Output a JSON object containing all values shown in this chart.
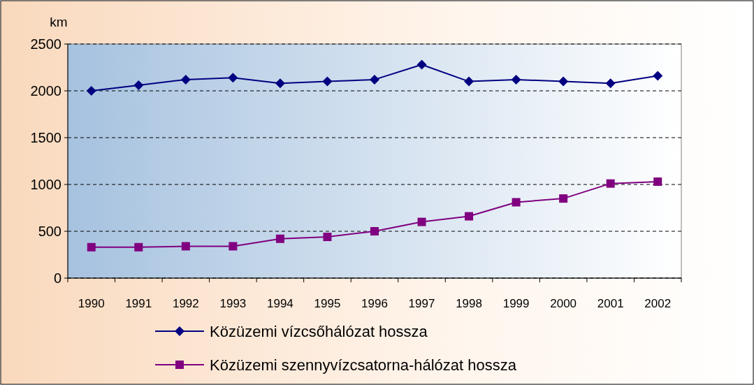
{
  "chart_data": {
    "type": "line",
    "ylabel": "km",
    "categories": [
      "1990",
      "1991",
      "1992",
      "1993",
      "1994",
      "1995",
      "1996",
      "1997",
      "1998",
      "1999",
      "2000",
      "2001",
      "2002"
    ],
    "series": [
      {
        "name": "Közüzemi vízcsőhálózat hossza",
        "color": "#000080",
        "marker": "diamond",
        "values": [
          2000,
          2060,
          2120,
          2140,
          2080,
          2100,
          2120,
          2280,
          2100,
          2120,
          2100,
          2080,
          2160
        ]
      },
      {
        "name": "Közüzemi szennyvízcsatorna-hálózat hossza",
        "color": "#800080",
        "marker": "square",
        "values": [
          330,
          330,
          340,
          340,
          420,
          440,
          500,
          600,
          660,
          810,
          850,
          1010,
          1030
        ]
      }
    ],
    "ylim": [
      0,
      2500
    ],
    "yticks": [
      0,
      500,
      1000,
      1500,
      2000,
      2500
    ],
    "grid": "y",
    "legend": "bottom",
    "line_style": "solid"
  }
}
